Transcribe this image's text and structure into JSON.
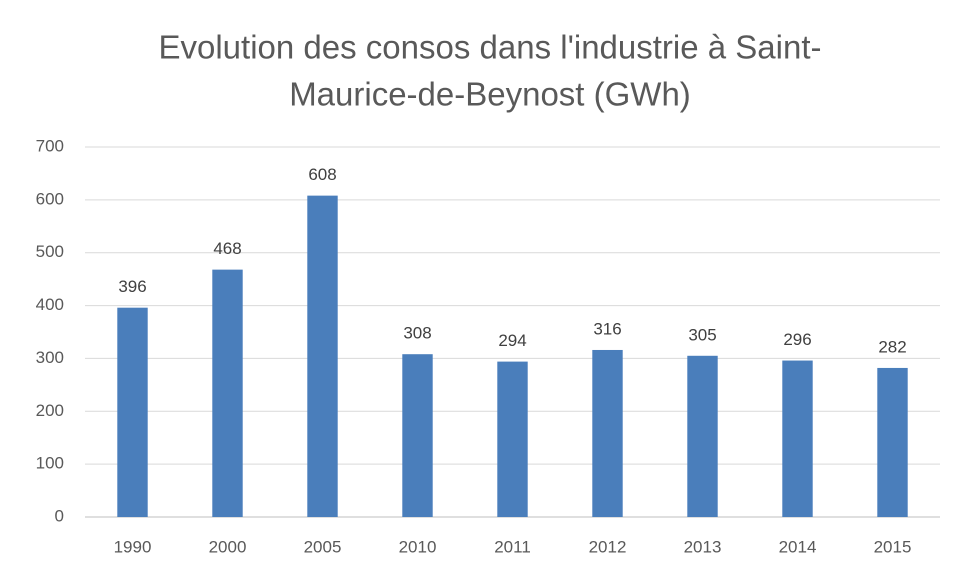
{
  "chart_data": {
    "type": "bar",
    "title": [
      "Evolution des consos dans l'industrie à Saint-",
      "Maurice-de-Beynost  (GWh)"
    ],
    "categories": [
      "1990",
      "2000",
      "2005",
      "2010",
      "2011",
      "2012",
      "2013",
      "2014",
      "2015"
    ],
    "values": [
      396,
      468,
      608,
      308,
      294,
      316,
      305,
      296,
      282
    ],
    "color": "#4a7ebb",
    "ylim": [
      0,
      700
    ],
    "yticks": [
      0,
      100,
      200,
      300,
      400,
      500,
      600,
      700
    ],
    "grid": true
  }
}
